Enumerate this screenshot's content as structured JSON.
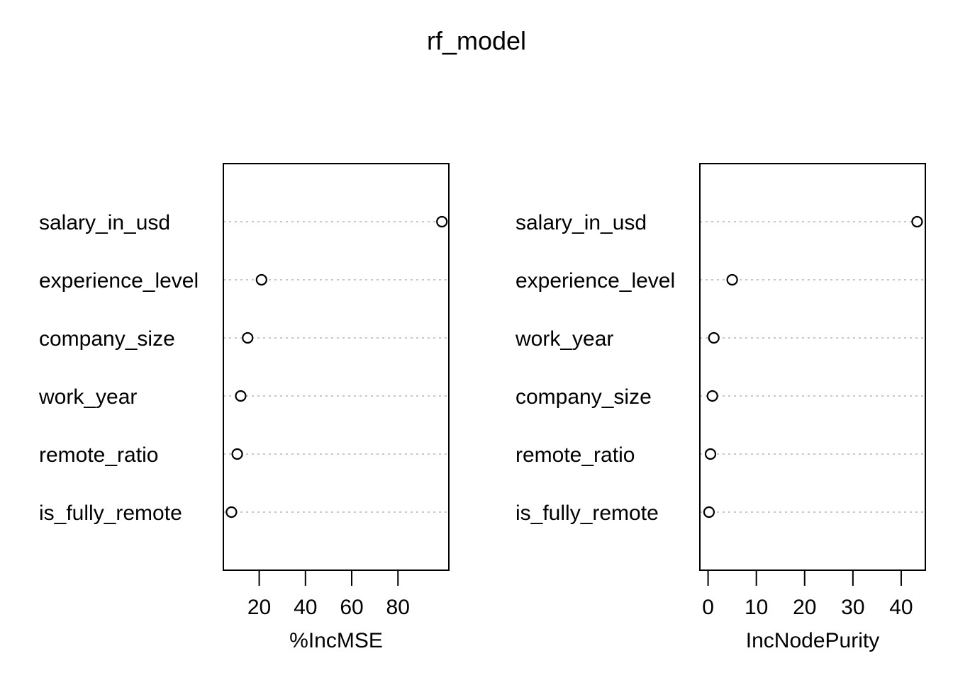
{
  "title": "rf_model",
  "chart_data": [
    {
      "type": "scatter",
      "variant": "dotchart",
      "xlabel": "%IncMSE",
      "ylabel": "",
      "categories": [
        "salary_in_usd",
        "experience_level",
        "company_size",
        "work_year",
        "remote_ratio",
        "is_fully_remote"
      ],
      "values": [
        99,
        21,
        15,
        12,
        10.5,
        8
      ],
      "xlim": [
        4.5,
        102
      ],
      "xticks": [
        20,
        40,
        60,
        80
      ],
      "grid": "dotted horizontal guide lines"
    },
    {
      "type": "scatter",
      "variant": "dotchart",
      "xlabel": "IncNodePurity",
      "ylabel": "",
      "categories": [
        "salary_in_usd",
        "experience_level",
        "work_year",
        "company_size",
        "remote_ratio",
        "is_fully_remote"
      ],
      "values": [
        43.3,
        5.0,
        1.2,
        0.9,
        0.5,
        0.2
      ],
      "xlim": [
        -1.7,
        45
      ],
      "xticks": [
        0,
        10,
        20,
        30,
        40
      ],
      "grid": "dotted horizontal guide lines"
    }
  ]
}
